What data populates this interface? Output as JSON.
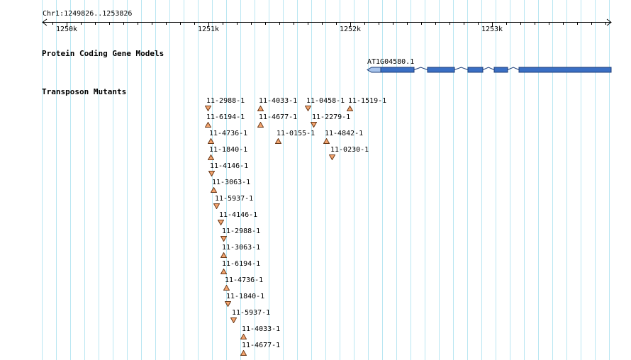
{
  "ruler": {
    "chrom_range": "Chr1:1249826..1253826",
    "ticks": [
      "1250k",
      "1251k",
      "1252k",
      "1253k"
    ]
  },
  "tracks": {
    "genes_title": "Protein Coding Gene Models",
    "mutants_title": "Transposon Mutants"
  },
  "gene": {
    "label": "AT1G04580.1",
    "color": "#3a6fc4"
  },
  "colors": {
    "grid": "#b9e6f2",
    "marker_fill": "#f3a46e",
    "marker_stroke": "#6a3a1a"
  },
  "mutants": [
    {
      "label": "11-2988-1",
      "dir": "down"
    },
    {
      "label": "11-4033-1",
      "dir": "up"
    },
    {
      "label": "11-0458-1",
      "dir": "down"
    },
    {
      "label": "11-1519-1",
      "dir": "up"
    },
    {
      "label": "11-6194-1",
      "dir": "up"
    },
    {
      "label": "11-4677-1",
      "dir": "up"
    },
    {
      "label": "11-2279-1",
      "dir": "down"
    },
    {
      "label": "11-4736-1",
      "dir": "up"
    },
    {
      "label": "11-0155-1",
      "dir": "up"
    },
    {
      "label": "11-4842-1",
      "dir": "up"
    },
    {
      "label": "11-1840-1",
      "dir": "up"
    },
    {
      "label": "11-0230-1",
      "dir": "down"
    },
    {
      "label": "11-4146-1",
      "dir": "down"
    },
    {
      "label": "11-3063-1",
      "dir": "up"
    },
    {
      "label": "11-5937-1",
      "dir": "down"
    },
    {
      "label": "11-4146-1",
      "dir": "down"
    },
    {
      "label": "11-2988-1",
      "dir": "down"
    },
    {
      "label": "11-3063-1",
      "dir": "up"
    },
    {
      "label": "11-6194-1",
      "dir": "up"
    },
    {
      "label": "11-4736-1",
      "dir": "up"
    },
    {
      "label": "11-1840-1",
      "dir": "down"
    },
    {
      "label": "11-5937-1",
      "dir": "down"
    },
    {
      "label": "11-4033-1",
      "dir": "up"
    },
    {
      "label": "11-4677-1",
      "dir": "up"
    }
  ]
}
